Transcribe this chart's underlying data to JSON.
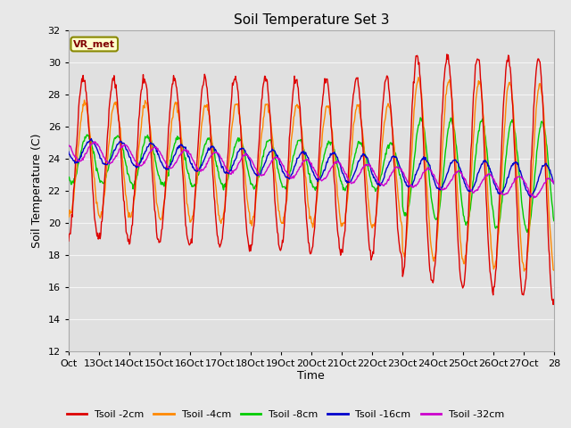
{
  "title": "Soil Temperature Set 3",
  "xlabel": "Time",
  "ylabel": "Soil Temperature (C)",
  "ylim": [
    12,
    32
  ],
  "yticks": [
    12,
    14,
    16,
    18,
    20,
    22,
    24,
    26,
    28,
    30,
    32
  ],
  "fig_bg": "#e8e8e8",
  "plot_bg": "#e0e0e0",
  "grid_color": "#f5f5f5",
  "legend_label": "VR_met",
  "series_colors": {
    "Tsoil -2cm": "#dd0000",
    "Tsoil -4cm": "#ff8800",
    "Tsoil -8cm": "#00cc00",
    "Tsoil -16cm": "#0000cc",
    "Tsoil -32cm": "#cc00cc"
  },
  "xtick_labels": [
    "Oct",
    "13Oct",
    "14Oct",
    "15Oct",
    "16Oct",
    "17Oct",
    "18Oct",
    "19Oct",
    "20Oct",
    "21Oct",
    "22Oct",
    "23Oct",
    "24Oct",
    "25Oct",
    "26Oct",
    "27Oct",
    "28"
  ],
  "n_days": 16,
  "samples_per_day": 48
}
